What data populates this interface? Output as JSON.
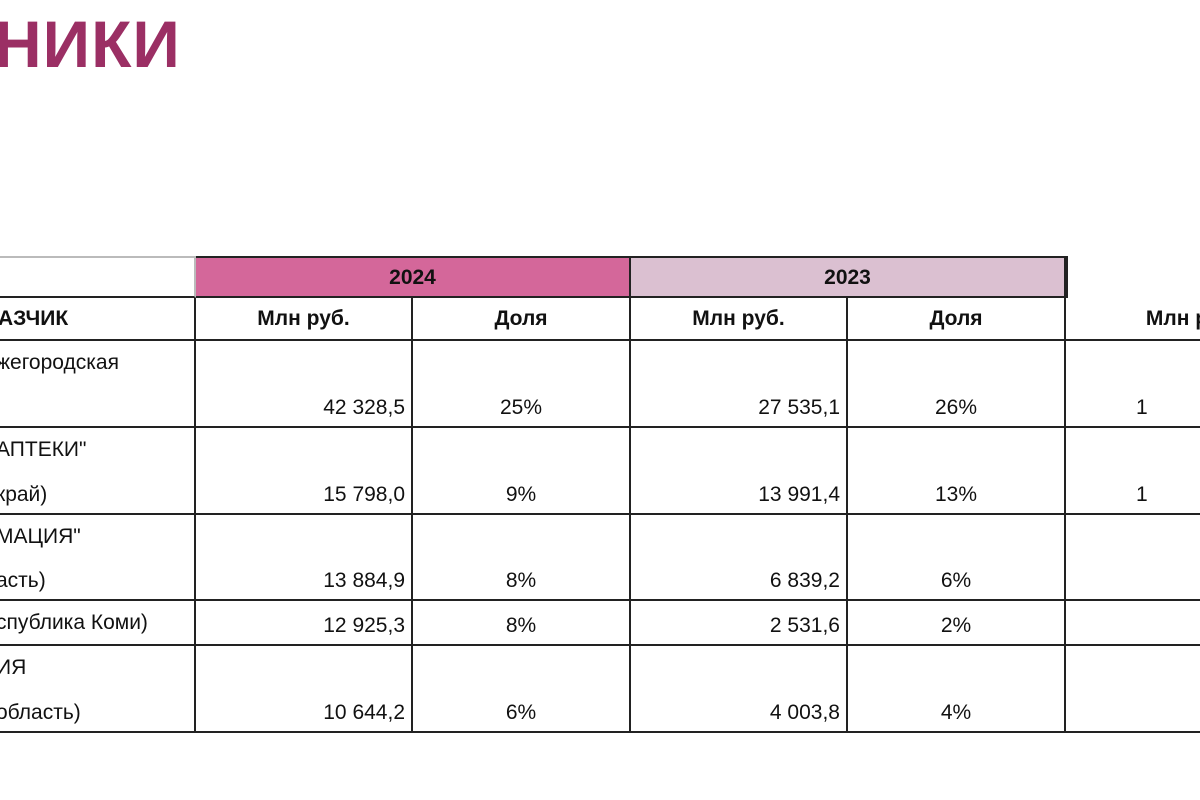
{
  "header": {
    "title": "НИКИ"
  },
  "table": {
    "years": [
      "2024",
      "2023"
    ],
    "subheader": [
      "АЗЧИК",
      "Млн руб.",
      "Доля",
      "Млн руб.",
      "Доля",
      "Млн р"
    ],
    "rows": [
      {
        "name": [
          "жегородская"
        ],
        "cells": [
          "42 328,5",
          "25%",
          "27 535,1",
          "26%",
          "1"
        ]
      },
      {
        "name": [
          "АПТЕКИ\"",
          "край)"
        ],
        "cells": [
          "15 798,0",
          "9%",
          "13 991,4",
          "13%",
          "1"
        ]
      },
      {
        "name": [
          "МАЦИЯ\"",
          "асть)"
        ],
        "cells": [
          "13 884,9",
          "8%",
          "6 839,2",
          "6%"
        ]
      },
      {
        "name": [
          "спублика Коми)"
        ],
        "cells": [
          "12 925,3",
          "8%",
          "2 531,6",
          "2%"
        ]
      },
      {
        "name": [
          "ИЯ",
          "область)"
        ],
        "cells": [
          "10 644,2",
          "6%",
          "4 003,8",
          "4%"
        ]
      }
    ]
  }
}
